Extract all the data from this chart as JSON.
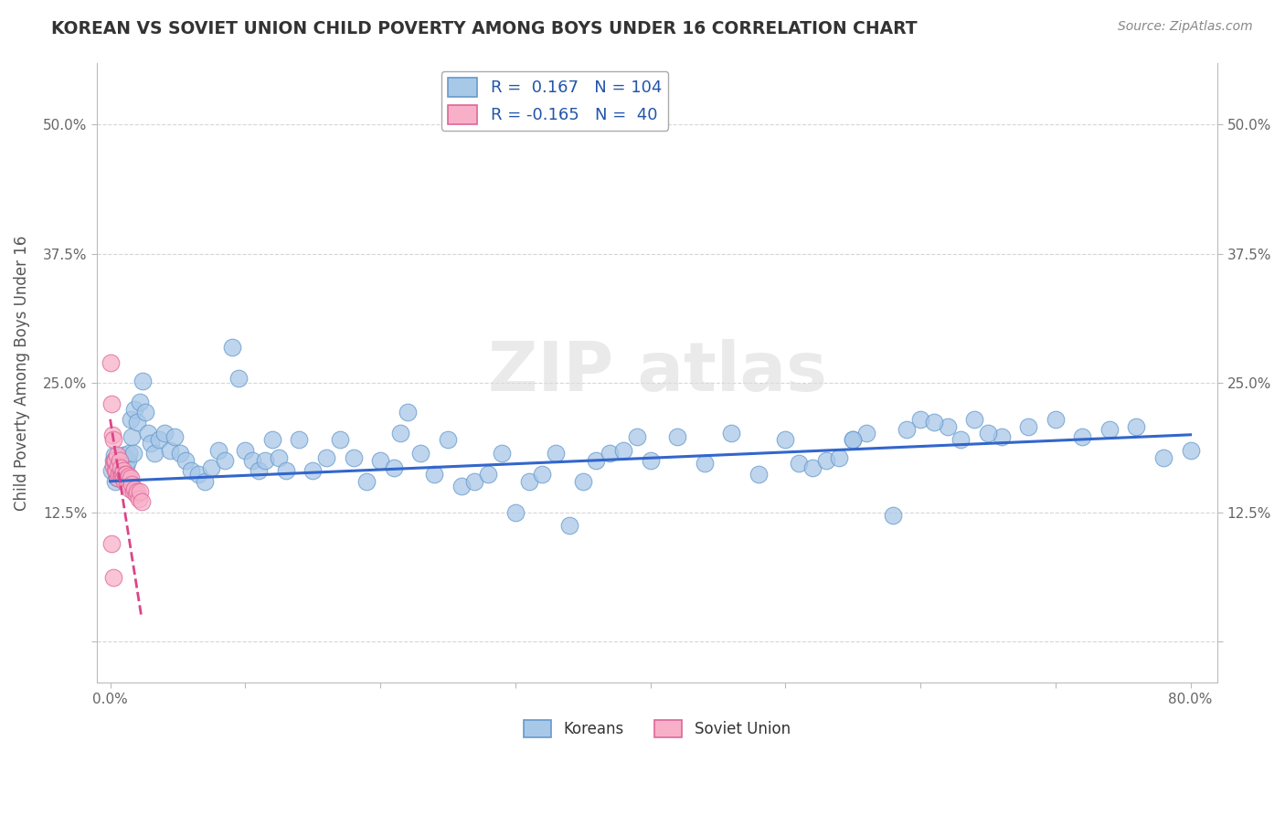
{
  "title": "KOREAN VS SOVIET UNION CHILD POVERTY AMONG BOYS UNDER 16 CORRELATION CHART",
  "source": "Source: ZipAtlas.com",
  "ylabel": "Child Poverty Among Boys Under 16",
  "xlim": [
    -0.01,
    0.82
  ],
  "ylim": [
    -0.04,
    0.56
  ],
  "yticks": [
    0.0,
    0.125,
    0.25,
    0.375,
    0.5
  ],
  "ytick_labels": [
    "",
    "12.5%",
    "25.0%",
    "37.5%",
    "50.0%"
  ],
  "xticks": [
    0.0,
    0.1,
    0.2,
    0.3,
    0.4,
    0.5,
    0.6,
    0.7,
    0.8
  ],
  "xtick_labels": [
    "0.0%",
    "",
    "",
    "",
    "",
    "",
    "",
    "",
    "80.0%"
  ],
  "koreans_color": "#a8c8e8",
  "koreans_edge": "#6699cc",
  "soviet_color": "#f8b0c8",
  "soviet_edge": "#dd6699",
  "trend_korean_color": "#3366cc",
  "trend_soviet_color": "#dd4488",
  "R_korean": 0.167,
  "N_korean": 104,
  "R_soviet": -0.165,
  "N_soviet": 40,
  "background_color": "#ffffff",
  "grid_color": "#cccccc",
  "title_color": "#333333",
  "axis_label_color": "#555555",
  "watermark_color": "#dddddd",
  "marker_size": 180,
  "koreans_x": [
    0.001,
    0.002,
    0.003,
    0.004,
    0.005,
    0.005,
    0.006,
    0.006,
    0.007,
    0.008,
    0.009,
    0.01,
    0.011,
    0.012,
    0.013,
    0.014,
    0.015,
    0.016,
    0.017,
    0.018,
    0.02,
    0.022,
    0.024,
    0.026,
    0.028,
    0.03,
    0.033,
    0.036,
    0.04,
    0.044,
    0.048,
    0.052,
    0.056,
    0.06,
    0.065,
    0.07,
    0.075,
    0.08,
    0.085,
    0.09,
    0.095,
    0.1,
    0.105,
    0.11,
    0.115,
    0.12,
    0.125,
    0.13,
    0.14,
    0.15,
    0.16,
    0.17,
    0.18,
    0.19,
    0.2,
    0.21,
    0.215,
    0.22,
    0.23,
    0.24,
    0.25,
    0.26,
    0.27,
    0.28,
    0.29,
    0.3,
    0.31,
    0.32,
    0.33,
    0.34,
    0.35,
    0.36,
    0.37,
    0.38,
    0.39,
    0.4,
    0.42,
    0.44,
    0.46,
    0.48,
    0.5,
    0.51,
    0.52,
    0.53,
    0.54,
    0.55,
    0.56,
    0.58,
    0.6,
    0.62,
    0.64,
    0.66,
    0.68,
    0.7,
    0.72,
    0.74,
    0.76,
    0.78,
    0.8,
    0.55,
    0.59,
    0.61,
    0.63,
    0.65
  ],
  "koreans_y": [
    0.165,
    0.175,
    0.18,
    0.155,
    0.17,
    0.158,
    0.172,
    0.163,
    0.175,
    0.165,
    0.158,
    0.18,
    0.162,
    0.17,
    0.175,
    0.182,
    0.215,
    0.198,
    0.182,
    0.225,
    0.212,
    0.232,
    0.252,
    0.222,
    0.202,
    0.192,
    0.182,
    0.195,
    0.202,
    0.185,
    0.198,
    0.182,
    0.175,
    0.165,
    0.162,
    0.155,
    0.168,
    0.185,
    0.175,
    0.285,
    0.255,
    0.185,
    0.175,
    0.165,
    0.175,
    0.195,
    0.178,
    0.165,
    0.195,
    0.165,
    0.178,
    0.195,
    0.178,
    0.155,
    0.175,
    0.168,
    0.202,
    0.222,
    0.182,
    0.162,
    0.195,
    0.15,
    0.155,
    0.162,
    0.182,
    0.125,
    0.155,
    0.162,
    0.182,
    0.112,
    0.155,
    0.175,
    0.182,
    0.185,
    0.198,
    0.175,
    0.198,
    0.172,
    0.202,
    0.162,
    0.195,
    0.172,
    0.168,
    0.175,
    0.178,
    0.195,
    0.202,
    0.122,
    0.215,
    0.208,
    0.215,
    0.198,
    0.208,
    0.215,
    0.198,
    0.205,
    0.208,
    0.178,
    0.185,
    0.195,
    0.205,
    0.212,
    0.195,
    0.202
  ],
  "soviet_x": [
    0.0005,
    0.001,
    0.0015,
    0.002,
    0.0025,
    0.003,
    0.0035,
    0.004,
    0.0045,
    0.005,
    0.0055,
    0.006,
    0.0065,
    0.007,
    0.0075,
    0.008,
    0.0085,
    0.009,
    0.0095,
    0.01,
    0.0105,
    0.011,
    0.0115,
    0.012,
    0.0125,
    0.013,
    0.0135,
    0.014,
    0.0145,
    0.015,
    0.016,
    0.017,
    0.018,
    0.019,
    0.02,
    0.021,
    0.022,
    0.023,
    0.001,
    0.002
  ],
  "soviet_y": [
    0.27,
    0.23,
    0.2,
    0.195,
    0.17,
    0.175,
    0.165,
    0.175,
    0.165,
    0.18,
    0.158,
    0.17,
    0.162,
    0.175,
    0.162,
    0.168,
    0.16,
    0.162,
    0.158,
    0.165,
    0.155,
    0.162,
    0.158,
    0.162,
    0.152,
    0.158,
    0.152,
    0.16,
    0.148,
    0.158,
    0.152,
    0.145,
    0.148,
    0.142,
    0.145,
    0.138,
    0.145,
    0.135,
    0.095,
    0.062
  ],
  "trend_k_x0": 0.0,
  "trend_k_x1": 0.8,
  "trend_k_y0": 0.155,
  "trend_k_y1": 0.2,
  "trend_s_x0": 0.0,
  "trend_s_x1": 0.023,
  "trend_s_y0": 0.215,
  "trend_s_y1": 0.025
}
